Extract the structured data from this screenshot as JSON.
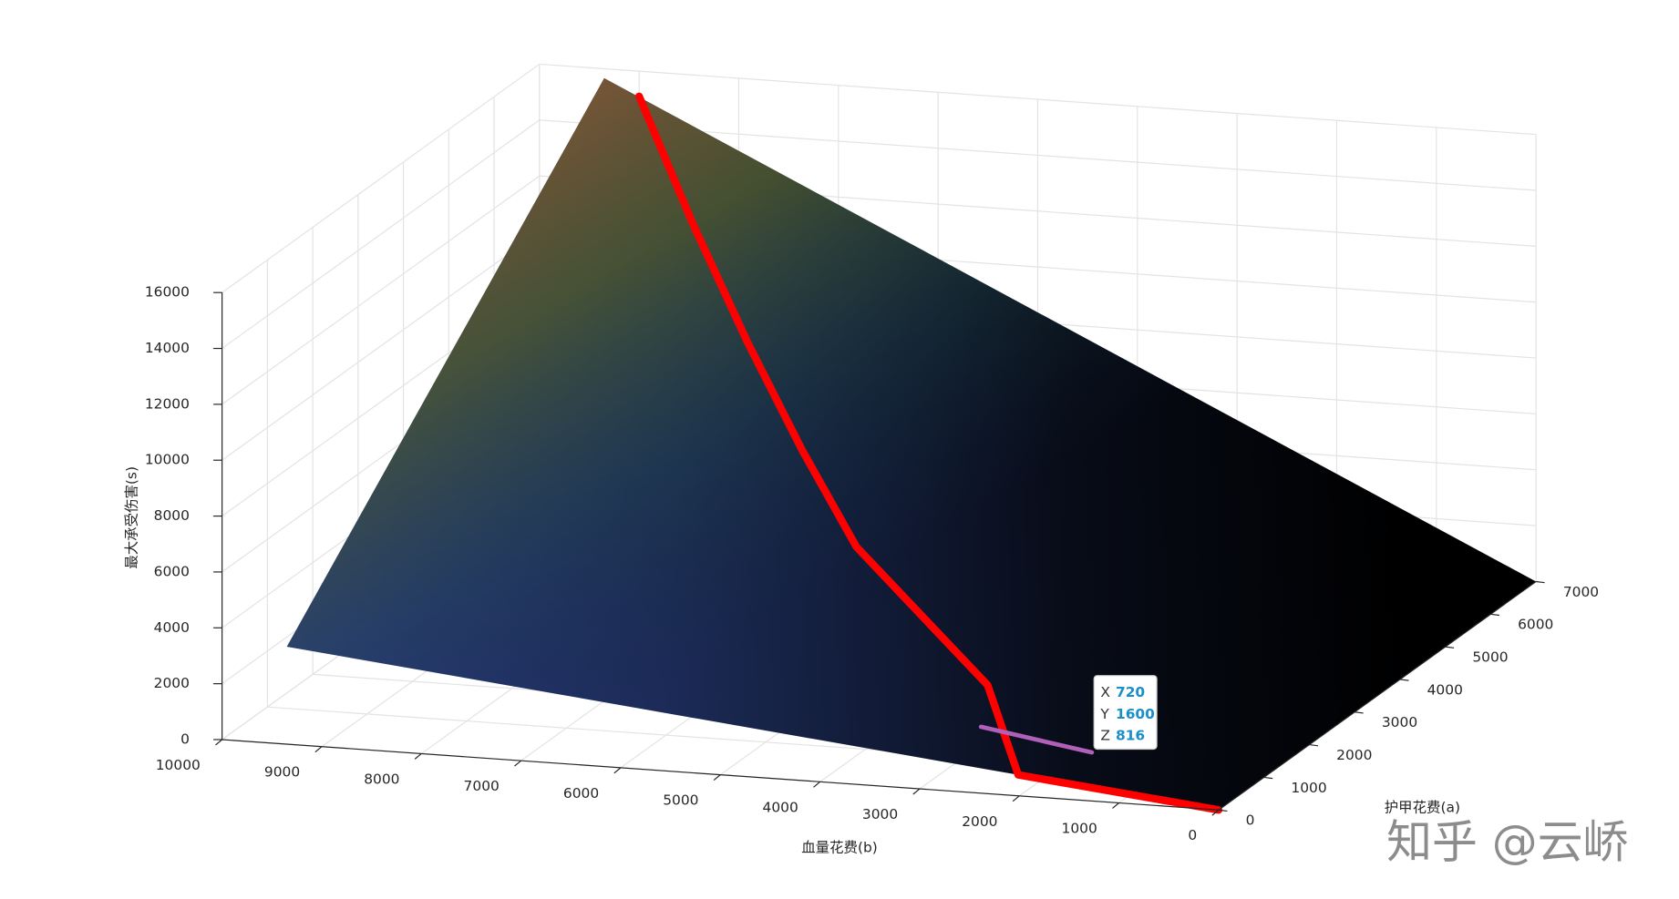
{
  "chart_data": {
    "type": "surface3d",
    "xlabel": "护甲花费(a)",
    "ylabel": "血量花费(b)",
    "zlabel": "最大承受伤害(s)",
    "xlim": [
      0,
      7000
    ],
    "ylim": [
      0,
      10000
    ],
    "zlim": [
      0,
      16000
    ],
    "xticks": [
      0,
      1000,
      2000,
      3000,
      4000,
      5000,
      6000,
      7000
    ],
    "yticks": [
      0,
      1000,
      2000,
      3000,
      4000,
      5000,
      6000,
      7000,
      8000,
      9000,
      10000
    ],
    "zticks": [
      0,
      2000,
      4000,
      6000,
      8000,
      10000,
      12000,
      14000,
      16000
    ],
    "grid": true,
    "surface": {
      "x": [
        0,
        7000
      ],
      "y": [
        0,
        9350
      ],
      "z": [
        [
          0,
          3490
        ],
        [
          0,
          15660
        ]
      ]
    },
    "series": [
      {
        "color": "#ff0000",
        "x": [
          0,
          0,
          1500,
          3000,
          4000,
          5000,
          6000,
          7000
        ],
        "y": [
          0,
          2011,
          3000,
          5000,
          6000,
          7000,
          8000,
          9000
        ],
        "z": [
          0,
          750,
          1957,
          4656,
          6702,
          9121,
          11912,
          15100
        ]
      },
      {
        "color": "#b060b8",
        "x": [
          720,
          760
        ],
        "y": [
          1600,
          2730
        ],
        "z": [
          816,
          1400
        ]
      }
    ],
    "datatip": {
      "labels": [
        "X",
        "Y",
        "Z"
      ],
      "values": [
        720,
        1600,
        816
      ]
    }
  },
  "watermark": "知乎 @云峤"
}
